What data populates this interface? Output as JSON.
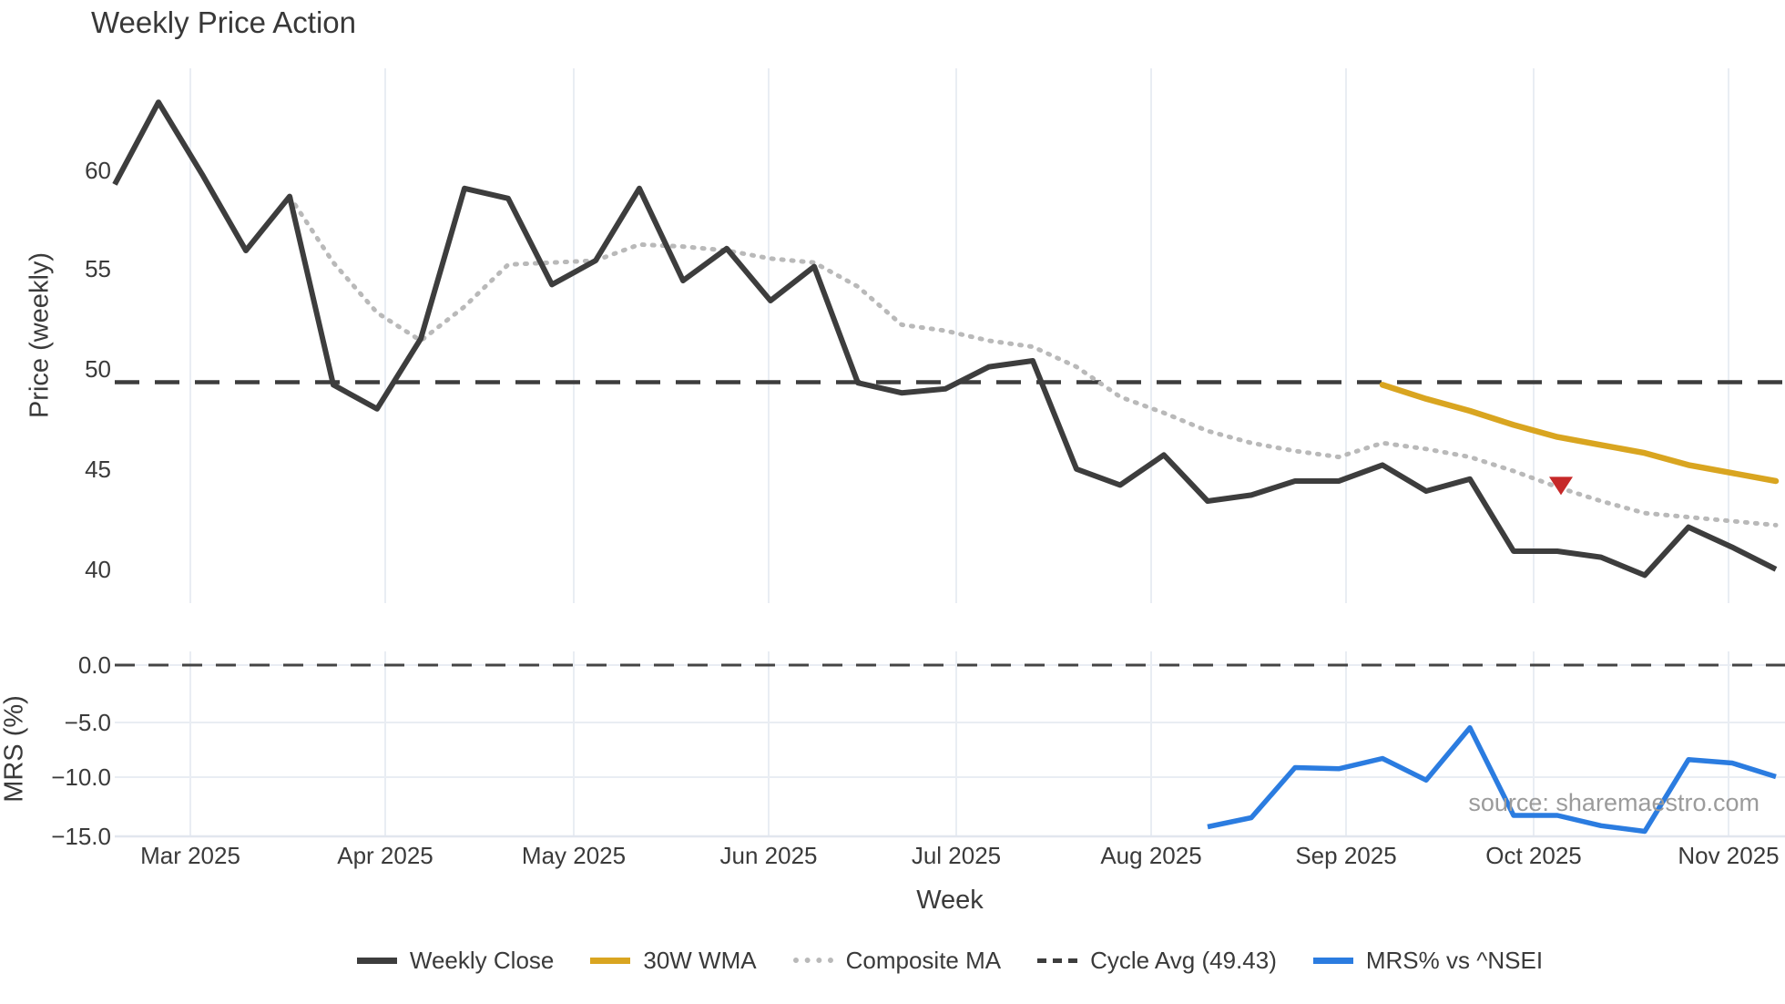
{
  "title": "Weekly Price Action",
  "xlabel": "Week",
  "source": "source: sharemaestro.com",
  "axes": {
    "price_ylabel": "Price (weekly)",
    "price_ytick_labels": [
      "60",
      "55",
      "50",
      "45",
      "40"
    ],
    "mrs_ylabel": "MRS (%)",
    "mrs_ytick_labels": [
      "0.0",
      "−5.0",
      "−10.0",
      "−15.0"
    ]
  },
  "legend": {
    "items": [
      {
        "label": "Weekly Close",
        "color": "#3d3d3d",
        "style": "solid"
      },
      {
        "label": "30W WMA",
        "color": "#d9a520",
        "style": "solid"
      },
      {
        "label": "Composite MA",
        "color": "#b9b9b9",
        "style": "dotted"
      },
      {
        "label": "Cycle Avg (49.43)",
        "color": "#3d3d3d",
        "style": "dashed"
      },
      {
        "label": "MRS% vs ^NSEI",
        "color": "#2b7ce0",
        "style": "solid"
      }
    ]
  },
  "chart_data": {
    "type": "line",
    "title": "Weekly Price Action",
    "n_weeks": 39,
    "x_axis": {
      "label": "Week",
      "tick_labels": [
        "Mar 2025",
        "Apr 2025",
        "May 2025",
        "Jun 2025",
        "Jul 2025",
        "Aug 2025",
        "Sep 2025",
        "Oct 2025",
        "Nov 2025"
      ],
      "grid": true
    },
    "price_panel": {
      "ylabel": "Price (weekly)",
      "ylim": [
        38.4,
        65.1
      ],
      "yticks": [
        60,
        55,
        50,
        45,
        40
      ],
      "series": {
        "weekly_close": {
          "name": "Weekly Close",
          "color": "#3d3d3d",
          "start_week": 0,
          "values": [
            59.3,
            63.4,
            59.8,
            56.0,
            58.7,
            49.3,
            48.1,
            51.6,
            59.1,
            58.6,
            54.3,
            55.5,
            59.1,
            54.5,
            56.1,
            53.5,
            55.2,
            49.4,
            48.9,
            49.1,
            50.2,
            50.5,
            45.1,
            44.3,
            45.8,
            43.5,
            43.8,
            44.5,
            44.5,
            45.3,
            44.0,
            44.6,
            41.0,
            41.0,
            40.7,
            39.8,
            42.2,
            41.2,
            40.1
          ]
        },
        "composite_ma": {
          "name": "Composite MA",
          "color": "#b9b9b9",
          "style": "dotted",
          "start_week": 4,
          "values": [
            58.7,
            55.4,
            52.9,
            51.5,
            53.2,
            55.3,
            55.4,
            55.5,
            56.3,
            56.2,
            56.0,
            55.6,
            55.4,
            54.2,
            52.3,
            52.0,
            51.5,
            51.2,
            50.2,
            48.7,
            47.9,
            47.0,
            46.4,
            46.0,
            45.7,
            46.4,
            46.1,
            45.7,
            45.0,
            44.2,
            43.5,
            42.9,
            42.7,
            42.5,
            42.3
          ]
        },
        "wma_30w": {
          "name": "30W WMA",
          "color": "#d9a520",
          "start_week": 29,
          "values": [
            49.3,
            48.6,
            48.0,
            47.3,
            46.7,
            46.3,
            45.9,
            45.3,
            44.9,
            44.5
          ]
        },
        "cycle_avg": {
          "name": "Cycle Avg (49.43)",
          "color": "#3d3d3d",
          "style": "dashed",
          "value": 49.43
        }
      },
      "marker": {
        "shape": "triangle-down",
        "color": "#c62828",
        "week_index": 33,
        "value": 44.3
      }
    },
    "mrs_panel": {
      "ylabel": "MRS (%)",
      "ylim": [
        -15.6,
        1.2
      ],
      "yticks": [
        0.0,
        -5.0,
        -10.0,
        -15.0
      ],
      "series": {
        "mrs_vs_nsei": {
          "name": "MRS% vs ^NSEI",
          "color": "#2b7ce0",
          "start_week": 25,
          "values": [
            -14.2,
            -13.4,
            -9.0,
            -9.1,
            -8.2,
            -10.1,
            -5.5,
            -13.2,
            -13.2,
            -14.1,
            -14.6,
            -8.3,
            -8.6,
            -9.8
          ]
        },
        "zero_line": {
          "style": "dashed",
          "value": 0.0
        }
      }
    }
  }
}
